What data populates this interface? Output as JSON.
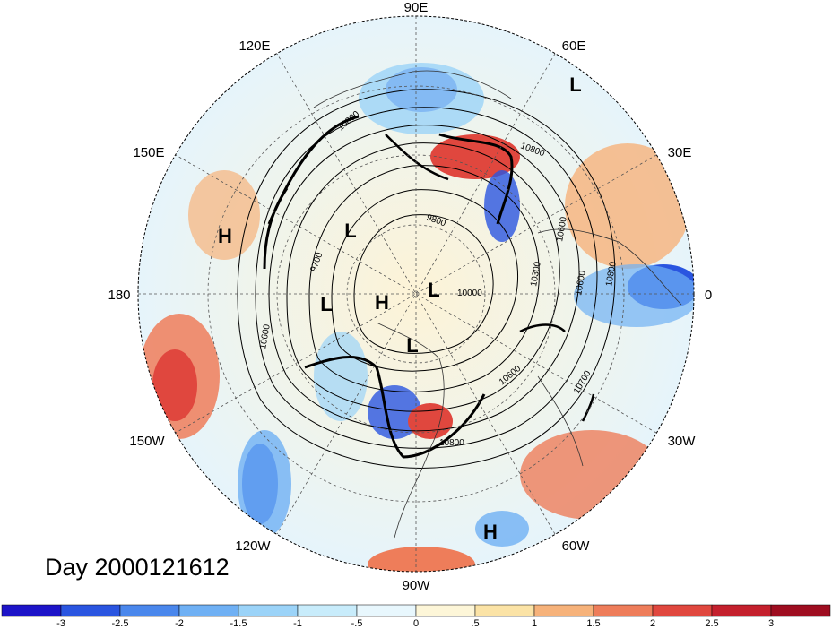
{
  "title": "Day 2000121612",
  "longitude_labels": {
    "n90e": "90E",
    "n60e": "60E",
    "n30e": "30E",
    "n0": "0",
    "n30w": "30W",
    "n60w": "60W",
    "n90w": "90W",
    "n120w": "120W",
    "n150w": "150W",
    "n180": "180",
    "n150e": "150E",
    "n120e": "120E"
  },
  "pressure_systems": [
    {
      "type": "L",
      "lon_label": "60E region"
    },
    {
      "type": "H",
      "lon_label": "160E region"
    },
    {
      "type": "L",
      "lon_label": "inner"
    },
    {
      "type": "L",
      "lon_label": "inner"
    },
    {
      "type": "H",
      "lon_label": "pole"
    },
    {
      "type": "L",
      "lon_label": "inner"
    },
    {
      "type": "L",
      "lon_label": "inner"
    },
    {
      "type": "H",
      "lon_label": "60W region"
    }
  ],
  "contour_labels": [
    "10800",
    "10800",
    "9800",
    "9700",
    "10000",
    "10300",
    "10600",
    "10600",
    "10800",
    "10600",
    "10700",
    "10800",
    "10600"
  ],
  "colorbar": {
    "ticks": [
      "-3",
      "-2.5",
      "-2",
      "-1.5",
      "-1",
      "-.5",
      "0",
      ".5",
      "1",
      "1.5",
      "2",
      "2.5",
      "3"
    ],
    "colors": [
      "#1d14c8",
      "#2a55e0",
      "#4a87ec",
      "#6fb0f4",
      "#9bd3f8",
      "#c8ecfb",
      "#e8f7fd",
      "#fdf6d8",
      "#fbe3a6",
      "#f6b27a",
      "#ee7d5a",
      "#e0473e",
      "#c4202d",
      "#9e0d20"
    ]
  }
}
